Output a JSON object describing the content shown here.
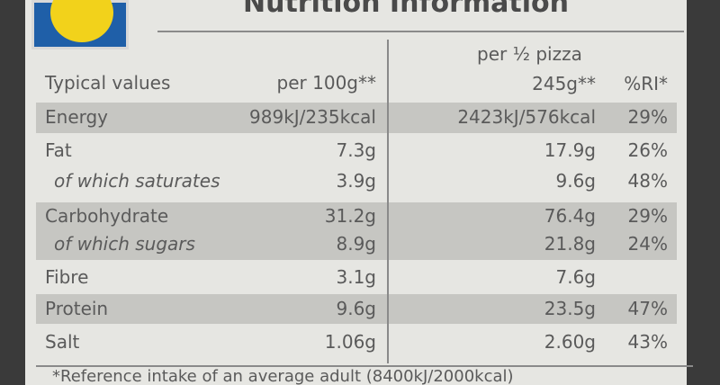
{
  "title": "Nutrition Information",
  "header": {
    "typical_values": "Typical values",
    "per_100g": "per 100g**",
    "per_portion": "per ½ pizza",
    "portion_weight": "245g**",
    "ri": "%RI*"
  },
  "rows": [
    {
      "label": "Energy",
      "per_100g": "989kJ/235kcal",
      "per_portion": "2423kJ/576kcal",
      "ri": "29%"
    },
    {
      "label": "Fat",
      "per_100g": "7.3g",
      "per_portion": "17.9g",
      "ri": "26%"
    },
    {
      "label": "of which saturates",
      "per_100g": "3.9g",
      "per_portion": "9.6g",
      "ri": "48%"
    },
    {
      "label": "Carbohydrate",
      "per_100g": "31.2g",
      "per_portion": "76.4g",
      "ri": "29%"
    },
    {
      "label": "of which sugars",
      "per_100g": "8.9g",
      "per_portion": "21.8g",
      "ri": "24%"
    },
    {
      "label": "Fibre",
      "per_100g": "3.1g",
      "per_portion": "7.6g"
    },
    {
      "label": "Protein",
      "per_100g": "9.6g",
      "per_portion": "23.5g",
      "ri": "47%"
    },
    {
      "label": "Salt",
      "per_100g": "1.06g",
      "per_portion": "2.60g",
      "ri": "43%"
    }
  ],
  "footnote": "*Reference intake of an average adult (8400kJ/2000kcal)"
}
